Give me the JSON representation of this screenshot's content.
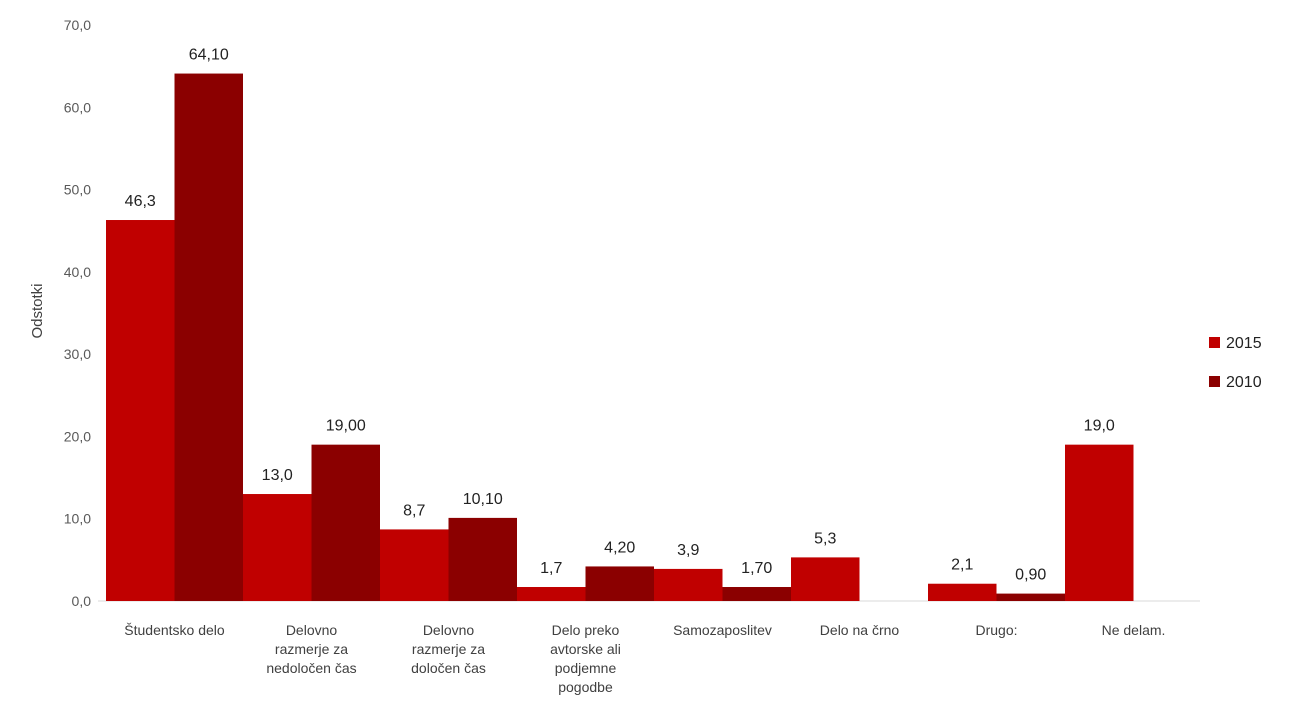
{
  "chart_data": {
    "type": "bar",
    "ylabel": "Odstotki",
    "ylim": [
      0,
      70
    ],
    "yticks": [
      "0,0",
      "10,0",
      "20,0",
      "30,0",
      "40,0",
      "50,0",
      "60,0",
      "70,0"
    ],
    "grid": false,
    "legend_position": "right",
    "categories": [
      [
        "Študentsko delo"
      ],
      [
        "Delovno",
        "razmerje za",
        "nedoločen čas"
      ],
      [
        "Delovno",
        "razmerje za",
        "določen čas"
      ],
      [
        "Delo preko",
        "avtorske ali",
        "podjemne",
        "pogodbe"
      ],
      [
        "Samozaposlitev"
      ],
      [
        "Delo na črno"
      ],
      [
        "Drugo:"
      ],
      [
        "Ne delam."
      ]
    ],
    "series": [
      {
        "name": "2015",
        "color": "#c00000",
        "values": [
          46.3,
          13.0,
          8.7,
          1.7,
          3.9,
          5.3,
          2.1,
          19.0
        ],
        "labels": [
          "46,3",
          "13,0",
          "8,7",
          "1,7",
          "3,9",
          "5,3",
          "2,1",
          "19,0"
        ]
      },
      {
        "name": "2010",
        "color": "#8b0000",
        "values": [
          64.1,
          19.0,
          10.1,
          4.2,
          1.7,
          null,
          0.9,
          null
        ],
        "labels": [
          "64,10",
          "19,00",
          "10,10",
          "4,20",
          "1,70",
          null,
          "0,90",
          null
        ]
      }
    ]
  }
}
